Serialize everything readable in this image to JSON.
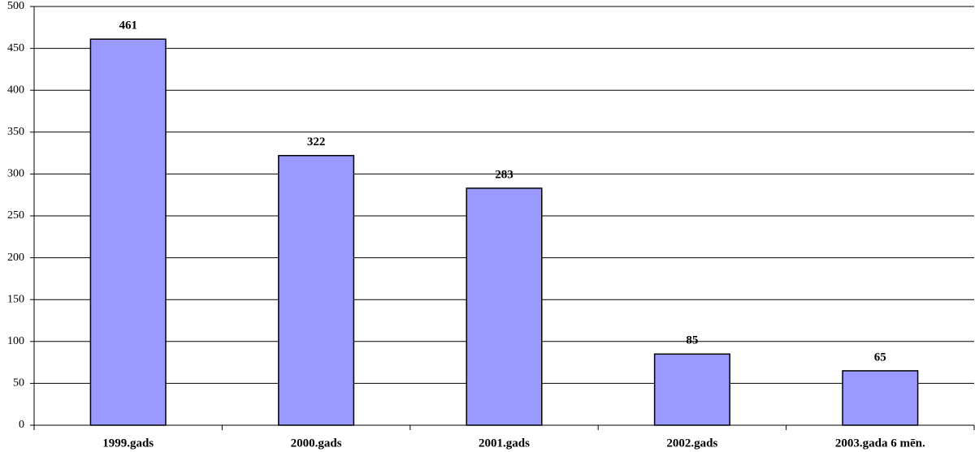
{
  "chart_data": {
    "type": "bar",
    "categories": [
      "1999.gads",
      "2000.gads",
      "2001.gads",
      "2002.gads",
      "2003.gada 6 mēn."
    ],
    "values": [
      461,
      322,
      283,
      85,
      65
    ],
    "color": "#9999ff",
    "ylim": [
      0,
      500
    ],
    "yticks": [
      0,
      50,
      100,
      150,
      200,
      250,
      300,
      350,
      400,
      450,
      500
    ],
    "grid": true
  }
}
